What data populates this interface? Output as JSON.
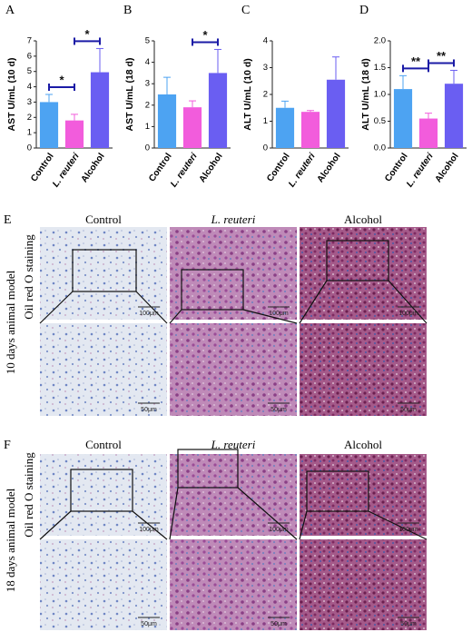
{
  "chart_data": [
    {
      "type": "bar",
      "panel": "A",
      "y_label": "AST U/mL (10 d)",
      "categories": [
        "Control",
        "L. reuteri",
        "Alcohol"
      ],
      "category_styles": [
        "normal",
        "italic",
        "normal"
      ],
      "values": [
        3.0,
        1.8,
        4.95
      ],
      "errors": [
        0.5,
        0.4,
        1.55
      ],
      "colors": [
        "#4da3f2",
        "#f25cdc",
        "#6a5ef2"
      ],
      "ylim": [
        0,
        7
      ],
      "yticks": [
        0,
        1,
        2,
        3,
        4,
        5,
        6,
        7
      ],
      "annotations": [
        {
          "text": "*",
          "between": [
            "Control",
            "L. reuteri"
          ]
        },
        {
          "text": "*",
          "between": [
            "L. reuteri",
            "Alcohol"
          ]
        }
      ]
    },
    {
      "type": "bar",
      "panel": "B",
      "y_label": "AST U/mL (18 d)",
      "categories": [
        "Control",
        "L. reuteri",
        "Alcohol"
      ],
      "category_styles": [
        "normal",
        "italic",
        "normal"
      ],
      "values": [
        2.5,
        1.9,
        3.5
      ],
      "errors": [
        0.8,
        0.3,
        1.1
      ],
      "colors": [
        "#4da3f2",
        "#f25cdc",
        "#6a5ef2"
      ],
      "ylim": [
        0,
        5
      ],
      "yticks": [
        0,
        1,
        2,
        3,
        4,
        5
      ],
      "annotations": [
        {
          "text": "*",
          "between": [
            "L. reuteri",
            "Alcohol"
          ]
        }
      ]
    },
    {
      "type": "bar",
      "panel": "C",
      "y_label": "ALT U/mL (10 d)",
      "categories": [
        "Control",
        "L. reuteri",
        "Alcohol"
      ],
      "category_styles": [
        "normal",
        "italic",
        "normal"
      ],
      "values": [
        1.5,
        1.35,
        2.55
      ],
      "errors": [
        0.25,
        0.05,
        0.85
      ],
      "colors": [
        "#4da3f2",
        "#f25cdc",
        "#6a5ef2"
      ],
      "ylim": [
        0,
        4
      ],
      "yticks": [
        0,
        1,
        2,
        3,
        4
      ],
      "annotations": []
    },
    {
      "type": "bar",
      "panel": "D",
      "y_label": "ALT U/mL (18 d)",
      "categories": [
        "Control",
        "L. reuteri",
        "Alcohol"
      ],
      "category_styles": [
        "normal",
        "italic",
        "normal"
      ],
      "values": [
        1.1,
        0.55,
        1.2
      ],
      "errors": [
        0.25,
        0.1,
        0.25
      ],
      "colors": [
        "#4da3f2",
        "#f25cdc",
        "#6a5ef2"
      ],
      "ylim": [
        0,
        2
      ],
      "yticks": [
        {
          "value": 0,
          "label": "0.0"
        },
        {
          "value": 0.5,
          "label": "0.5"
        },
        {
          "value": 1,
          "label": "1.0"
        },
        {
          "value": 1.5,
          "label": "1.5"
        },
        {
          "value": 2,
          "label": "2.0"
        }
      ],
      "annotations": [
        {
          "text": "**",
          "between": [
            "Control",
            "L. reuteri"
          ]
        },
        {
          "text": "**",
          "between": [
            "L. reuteri",
            "Alcohol"
          ]
        }
      ]
    }
  ],
  "figure_panels": [
    {
      "label": "E",
      "columns": [
        "Control",
        "L. reuteri",
        "Alcohol"
      ],
      "column_styles": [
        "normal",
        "italic",
        "normal"
      ],
      "side_labels": [
        "10 days animal model",
        "Oil red O staining"
      ],
      "scale_bars": [
        "100μm",
        "50μm"
      ]
    },
    {
      "label": "F",
      "columns": [
        "Control",
        "L. reuteri",
        "Alcohol"
      ],
      "column_styles": [
        "normal",
        "italic",
        "normal"
      ],
      "side_labels": [
        "18 days animal model",
        "Oil red O staining"
      ],
      "scale_bars": [
        "100μm",
        "50μm"
      ]
    }
  ]
}
